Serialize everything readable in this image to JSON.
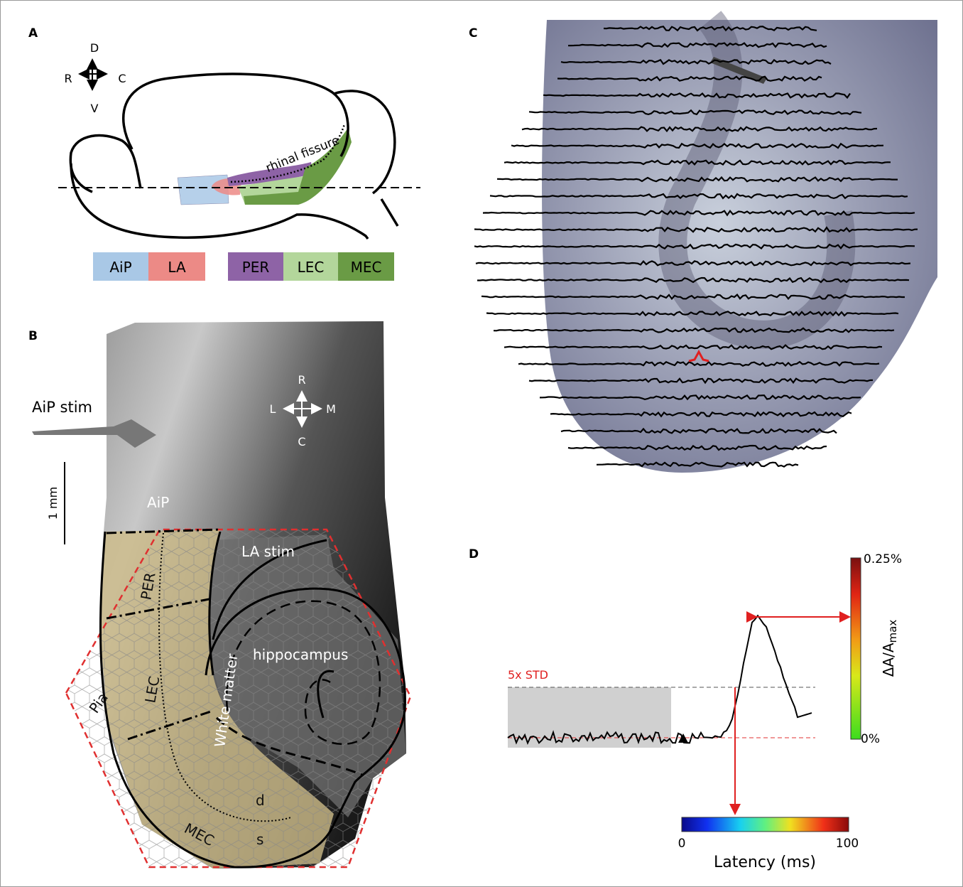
{
  "panels": {
    "A": {
      "label": "A",
      "compass": {
        "d": "D",
        "v": "V",
        "r": "R",
        "c": "C"
      },
      "annotation": "rhinal fissure",
      "legend": [
        {
          "label": "AiP",
          "color": "#a9c8e6"
        },
        {
          "label": "LA",
          "color": "#ec8a86"
        },
        {
          "label": "PER",
          "color": "#8e63a6"
        },
        {
          "label": "LEC",
          "color": "#b3d69b"
        },
        {
          "label": "MEC",
          "color": "#6a9b45"
        }
      ]
    },
    "B": {
      "label": "B",
      "stim": "AiP stim",
      "compass": {
        "r": "R",
        "l": "L",
        "m": "M",
        "c": "C"
      },
      "scale_bar": "1 mm",
      "regions": {
        "aip": "AiP",
        "la_stim": "LA stim",
        "per": "PER",
        "hippocampus": "hippocampus",
        "white_matter": "White matter",
        "lec": "LEC",
        "pia": "Pia",
        "d": "d",
        "s": "s",
        "mec": "MEC"
      }
    },
    "C": {
      "label": "C"
    },
    "D": {
      "label": "D",
      "threshold": "5x STD",
      "amplitude_label": "ΔA/A",
      "amplitude_subscript": "max",
      "amplitude_max": "0.25%",
      "amplitude_min": "0%",
      "latency_min": "0",
      "latency_max": "100",
      "latency_label": "Latency (ms)"
    }
  }
}
